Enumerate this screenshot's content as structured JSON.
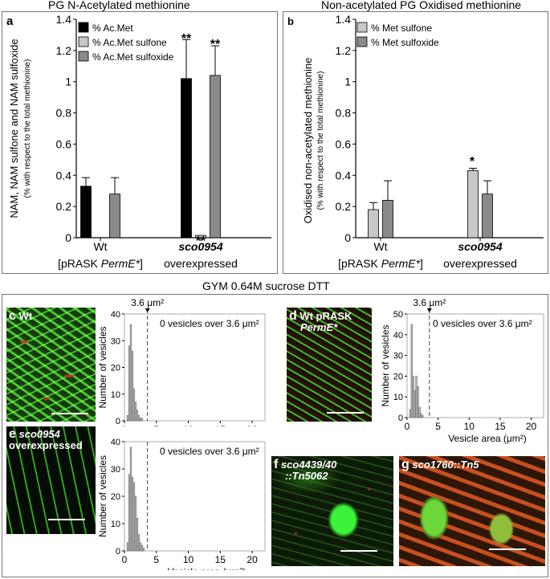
{
  "panel_a": {
    "title": "PG N-Acetylated methionine",
    "letter": "a",
    "ylabel_main": "NAM, NAM sulfone and NAM sulfoxide",
    "ylabel_sub": "(% with respect to the total methionine)",
    "groups": [
      {
        "line1": "Wt",
        "line2_pre": "[pRASK ",
        "line2_em": "PermE*",
        "line2_post": "]"
      },
      {
        "line1": "sco0954",
        "line2": "overexpressed"
      }
    ],
    "stars": [
      "**",
      "**",
      "**"
    ],
    "legend": [
      "% Ac.Met",
      "% Ac.Met sulfone",
      "% Ac.Met sulfoxide"
    ]
  },
  "panel_b": {
    "title": "Non-acetylated PG Oxidised methionine",
    "letter": "b",
    "ylabel_main": "Oxidised non-acetylated methionine",
    "ylabel_sub": "(% with respect to the total methionine)",
    "groups": [
      {
        "line1": "Wt",
        "line2_pre": "[pRASK ",
        "line2_em": "PermE*",
        "line2_post": "]"
      },
      {
        "line1": "sco0954",
        "line2": "overexpressed"
      }
    ],
    "stars": [
      "*"
    ],
    "legend": [
      "% Met sulfone",
      "% Met sulfoxide"
    ]
  },
  "bottom": {
    "title": "GYM 0.64M sucrose DTT",
    "threshold_label": "3.6 μm²",
    "annotation": "0 vesicles over 3.6 μm²",
    "ylabel": "Number of vesicles",
    "xlabel": "Vesicle area (μm²)",
    "micrographs": {
      "c": {
        "letter": "c",
        "label": "Wt"
      },
      "d": {
        "letter": "d",
        "label_1": "Wt pRASK",
        "label_2": "PermE*"
      },
      "e": {
        "letter": "e",
        "label_1": "sco0954",
        "label_2": "overexpressed"
      },
      "f": {
        "letter": "f",
        "label_1": "sco4439/40",
        "label_2": "::Tn5062"
      },
      "g": {
        "letter": "g",
        "label": "sco1760::Tn5"
      }
    }
  },
  "colors": {
    "ac_met": "#000000",
    "sulfone": "#c8c8c8",
    "sulfoxide": "#8a8a8a",
    "hist_bar": "#bdbdbd"
  },
  "chart_data": [
    {
      "type": "bar",
      "id": "a",
      "categories": [
        "Wt [pRASK PermE*]",
        "sco0954 overexpressed"
      ],
      "series": [
        {
          "name": "% Ac.Met",
          "values": [
            0.33,
            1.02
          ],
          "errors": [
            0.055,
            0.25
          ]
        },
        {
          "name": "% Ac.Met sulfone",
          "values": [
            0.0,
            0.015
          ],
          "errors": [
            0,
            0
          ]
        },
        {
          "name": "% Ac.Met sulfoxide",
          "values": [
            0.28,
            1.04
          ],
          "errors": [
            0.105,
            0.19
          ]
        }
      ],
      "ylim": [
        0,
        1.4
      ],
      "yticks": [
        "0",
        "0.2",
        "0.4",
        "0.6",
        "0.8",
        "1",
        "1.2",
        "1.4"
      ],
      "legend_position": "top-left",
      "grid": false
    },
    {
      "type": "bar",
      "id": "b",
      "categories": [
        "Wt [pRASK PermE*]",
        "sco0954 overexpressed"
      ],
      "series": [
        {
          "name": "% Met sulfone",
          "values": [
            0.18,
            0.43
          ],
          "errors": [
            0.045,
            0.015
          ]
        },
        {
          "name": "% Met sulfoxide",
          "values": [
            0.24,
            0.28
          ],
          "errors": [
            0.125,
            0.085
          ]
        }
      ],
      "ylim": [
        0,
        1.4
      ],
      "yticks": [
        "0",
        "0.2",
        "0.4",
        "0.6",
        "0.8",
        "1",
        "1.2",
        "1.4"
      ],
      "legend_position": "top-left",
      "grid": false
    },
    {
      "type": "bar",
      "id": "c-hist",
      "x": [
        0.5,
        0.75,
        1.0,
        1.25,
        1.5,
        1.75,
        2.0,
        2.25,
        2.5,
        2.75,
        3.0
      ],
      "values": [
        2,
        28,
        36,
        26,
        12,
        7,
        4,
        2,
        1,
        1,
        0
      ],
      "xlim": [
        0,
        22
      ],
      "ylim": [
        0,
        40
      ],
      "xticks": [
        "0",
        "5",
        "10",
        "15",
        "20"
      ],
      "yticks": [
        "0",
        "10",
        "20",
        "30",
        "40"
      ],
      "threshold": 3.6
    },
    {
      "type": "bar",
      "id": "d-hist",
      "x": [
        0.5,
        0.75,
        1.0,
        1.25,
        1.5,
        1.75,
        2.0,
        2.25,
        2.5,
        2.75,
        3.0
      ],
      "values": [
        4,
        45,
        20,
        13,
        20,
        15,
        5,
        2,
        1,
        0,
        0
      ],
      "xlim": [
        0,
        22
      ],
      "ylim": [
        0,
        50
      ],
      "xticks": [
        "0",
        "5",
        "10",
        "15",
        "20"
      ],
      "yticks": [
        "0",
        "10",
        "20",
        "30",
        "40",
        "50"
      ],
      "threshold": 3.6
    },
    {
      "type": "bar",
      "id": "e-hist",
      "x": [
        0.5,
        0.75,
        1.0,
        1.25,
        1.5,
        1.75,
        2.0,
        2.25,
        2.5,
        2.75,
        3.0
      ],
      "values": [
        3,
        28,
        38,
        27,
        25,
        20,
        12,
        6,
        3,
        2,
        1
      ],
      "xlim": [
        0,
        22
      ],
      "ylim": [
        0,
        40
      ],
      "xticks": [
        "0",
        "5",
        "10",
        "15",
        "20"
      ],
      "yticks": [
        "0",
        "10",
        "20",
        "30",
        "40"
      ],
      "threshold": 3.6
    }
  ]
}
